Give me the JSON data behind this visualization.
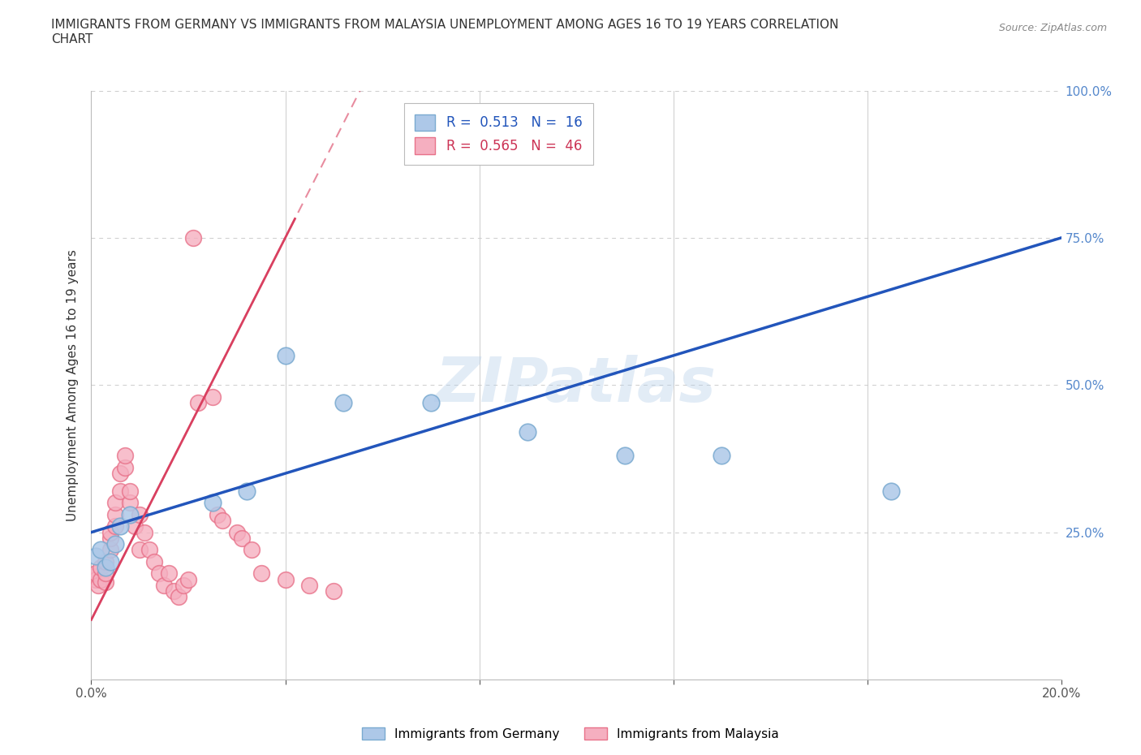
{
  "title": "IMMIGRANTS FROM GERMANY VS IMMIGRANTS FROM MALAYSIA UNEMPLOYMENT AMONG AGES 16 TO 19 YEARS CORRELATION\nCHART",
  "source_text": "Source: ZipAtlas.com",
  "ylabel": "Unemployment Among Ages 16 to 19 years",
  "xlim": [
    0.0,
    0.2
  ],
  "ylim": [
    0.0,
    1.0
  ],
  "xtick_pos": [
    0.0,
    0.04,
    0.08,
    0.12,
    0.16,
    0.2
  ],
  "xticklabels": [
    "0.0%",
    "",
    "",
    "",
    "",
    "20.0%"
  ],
  "ytick_positions": [
    0.0,
    0.25,
    0.5,
    0.75,
    1.0
  ],
  "ytick_labels_right": [
    "",
    "25.0%",
    "50.0%",
    "75.0%",
    "100.0%"
  ],
  "watermark": "ZIPatlas",
  "germany_color": "#adc8e8",
  "malaysia_color": "#f5afc0",
  "germany_edge": "#7aaad0",
  "malaysia_edge": "#e8728a",
  "trend_germany_color": "#2255bb",
  "trend_malaysia_color": "#d94060",
  "legend_R_germany": "R = 0.513",
  "legend_N_germany": "N = 16",
  "legend_R_malaysia": "R = 0.565",
  "legend_N_malaysia": "N = 46",
  "germany_x": [
    0.001,
    0.002,
    0.003,
    0.004,
    0.005,
    0.006,
    0.008,
    0.025,
    0.032,
    0.04,
    0.052,
    0.07,
    0.09,
    0.11,
    0.13,
    0.165
  ],
  "germany_y": [
    0.21,
    0.22,
    0.19,
    0.2,
    0.23,
    0.26,
    0.28,
    0.3,
    0.32,
    0.55,
    0.47,
    0.47,
    0.42,
    0.38,
    0.38,
    0.32
  ],
  "malaysia_x": [
    0.0005,
    0.001,
    0.001,
    0.0015,
    0.002,
    0.002,
    0.003,
    0.003,
    0.003,
    0.004,
    0.004,
    0.004,
    0.005,
    0.005,
    0.005,
    0.006,
    0.006,
    0.007,
    0.007,
    0.008,
    0.008,
    0.009,
    0.01,
    0.01,
    0.011,
    0.012,
    0.013,
    0.014,
    0.015,
    0.016,
    0.017,
    0.018,
    0.019,
    0.02,
    0.021,
    0.022,
    0.025,
    0.026,
    0.027,
    0.03,
    0.031,
    0.033,
    0.035,
    0.04,
    0.045,
    0.05
  ],
  "malaysia_y": [
    0.175,
    0.17,
    0.18,
    0.16,
    0.17,
    0.19,
    0.165,
    0.18,
    0.2,
    0.22,
    0.24,
    0.25,
    0.26,
    0.28,
    0.3,
    0.32,
    0.35,
    0.36,
    0.38,
    0.3,
    0.32,
    0.26,
    0.28,
    0.22,
    0.25,
    0.22,
    0.2,
    0.18,
    0.16,
    0.18,
    0.15,
    0.14,
    0.16,
    0.17,
    0.75,
    0.47,
    0.48,
    0.28,
    0.27,
    0.25,
    0.24,
    0.22,
    0.18,
    0.17,
    0.16,
    0.15
  ],
  "background_color": "#ffffff",
  "grid_color": "#cccccc",
  "right_tick_color": "#5588cc",
  "legend_text_germany_color": "#2255bb",
  "legend_text_malaysia_color": "#cc3355"
}
